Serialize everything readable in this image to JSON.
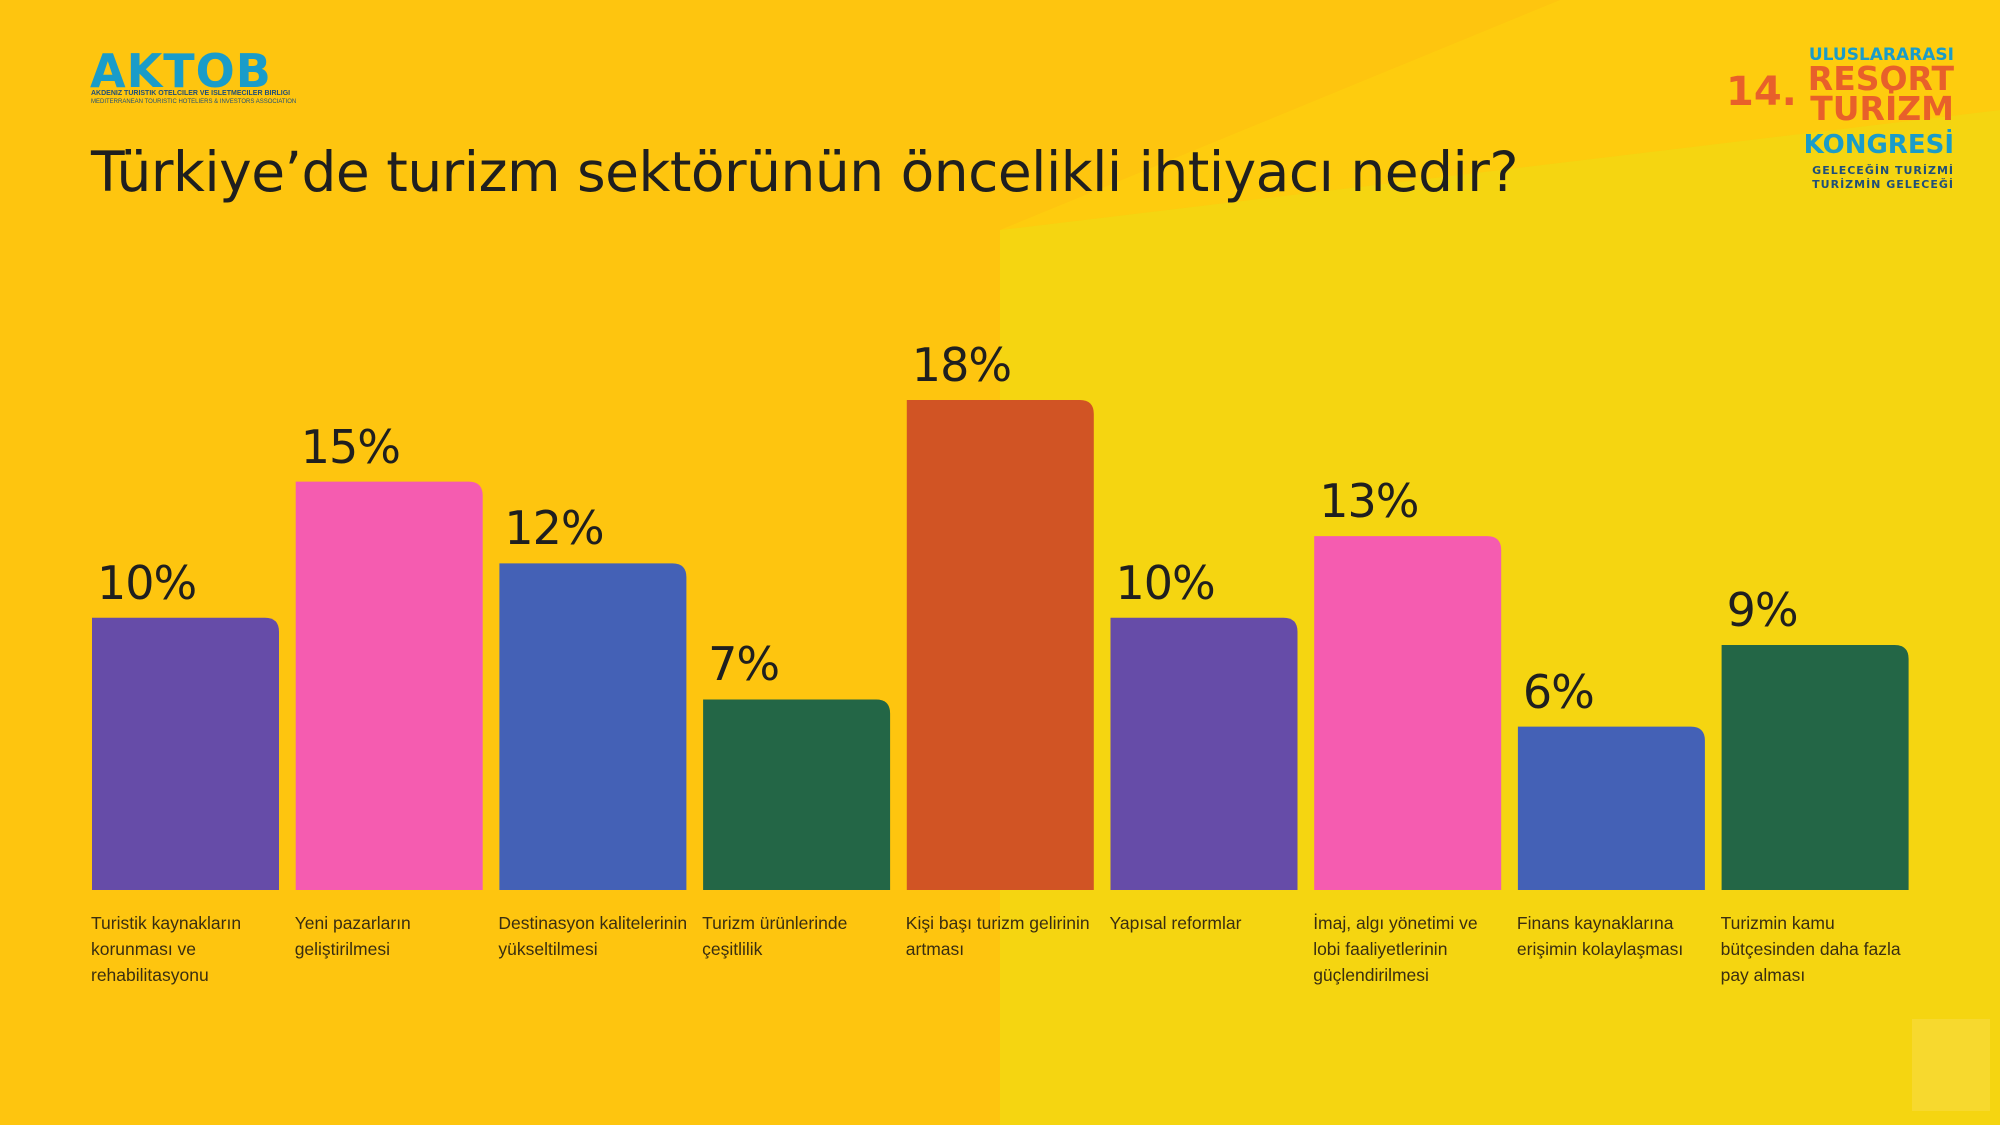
{
  "logo_left": {
    "name": "AKTOB",
    "line1": "AKDENIZ TURISTIK OTELCILER VE ISLETMECILER BIRLIGI",
    "line2": "MEDITERRANEAN TOURISTIC HOTELIERS & INVESTORS ASSOCIATION"
  },
  "logo_right": {
    "l1": "ULUSLARARASI",
    "num": "14.",
    "l2": "RESORT",
    "l3": "TURİZM",
    "l4": "KONGRESİ",
    "l5": "GELECEĞİN TURİZMİ",
    "l6": "TURİZMİN GELECEĞİ"
  },
  "colors": {
    "purple": "#664ca8",
    "pink": "#f55cb0",
    "blue": "#4461b6",
    "green": "#236646",
    "orange": "#d15424",
    "bg_left": "#fec50f",
    "bg_right": "#f5d511",
    "aktob_blue": "#1a9cc9"
  },
  "chart_data": {
    "type": "bar",
    "title": "Türkiye’de turizm sektörünün öncelikli ihtiyacı nedir?",
    "categories": [
      "Turistik kaynakların korunması ve rehabilitasyonu",
      "Yeni pazarların geliştirilmesi",
      "Destinasyon kalitelerinin yükseltilmesi",
      "Turizm ürünlerinde çeşitlilik",
      "Kişi başı turizm gelirinin artması",
      "Yapısal reformlar",
      "İmaj, algı yönetimi ve lobi faaliyetlerinin güçlendirilmesi",
      "Finans kaynaklarına erişimin kolaylaşması",
      "Turizmin kamu bütçesinden daha fazla pay alması"
    ],
    "values": [
      10,
      15,
      12,
      7,
      18,
      10,
      13,
      6,
      9
    ],
    "value_labels": [
      "10%",
      "15%",
      "12%",
      "7%",
      "18%",
      "10%",
      "13%",
      "6%",
      "9%"
    ],
    "bar_colors": [
      "#664ca8",
      "#f55cb0",
      "#4461b6",
      "#236646",
      "#d15424",
      "#664ca8",
      "#f55cb0",
      "#4461b6",
      "#236646"
    ],
    "unit": "%",
    "ylim": [
      0,
      18
    ],
    "grid": false,
    "legend": "none"
  }
}
